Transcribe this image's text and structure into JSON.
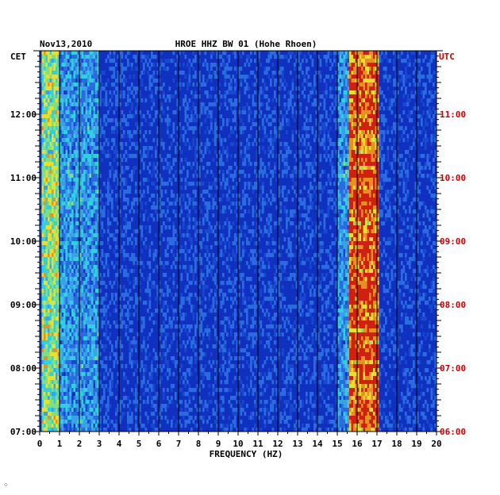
{
  "chart_data": {
    "type": "heatmap",
    "date": "Nov13,2010",
    "title": "HROE HHZ BW 01 (Hohe Rhoen)",
    "left_timezone": "CET",
    "right_timezone": "UTC",
    "xlabel": "FREQUENCY (HZ)",
    "xlim": [
      0,
      20
    ],
    "x_ticks": [
      "0",
      "1",
      "2",
      "3",
      "4",
      "5",
      "6",
      "7",
      "8",
      "9",
      "10",
      "11",
      "12",
      "13",
      "14",
      "15",
      "16",
      "17",
      "18",
      "19",
      "20"
    ],
    "y_ticks_left": [
      "07:00",
      "08:00",
      "09:00",
      "10:00",
      "11:00",
      "12:00"
    ],
    "y_ticks_right": [
      "06:00",
      "07:00",
      "08:00",
      "09:00",
      "10:00",
      "11:00"
    ],
    "time_range_cet": [
      "07:00",
      "13:00"
    ],
    "colors": {
      "background": "#1030c0",
      "low": "#0a1ea8",
      "mid": "#2a6ce0",
      "cyan": "#30d0e0",
      "yellow": "#e8e030",
      "red": "#d02010",
      "utc_label": "#d00000",
      "gridline": "#000000"
    },
    "energy_bands": [
      {
        "from_hz": 0.1,
        "to_hz": 1.0,
        "level": "high"
      },
      {
        "from_hz": 1.0,
        "to_hz": 3.0,
        "level": "medium"
      },
      {
        "from_hz": 15.0,
        "to_hz": 15.6,
        "level": "medium"
      },
      {
        "from_hz": 15.6,
        "to_hz": 17.1,
        "level": "very-high"
      }
    ]
  },
  "footer_mark": "⁘"
}
